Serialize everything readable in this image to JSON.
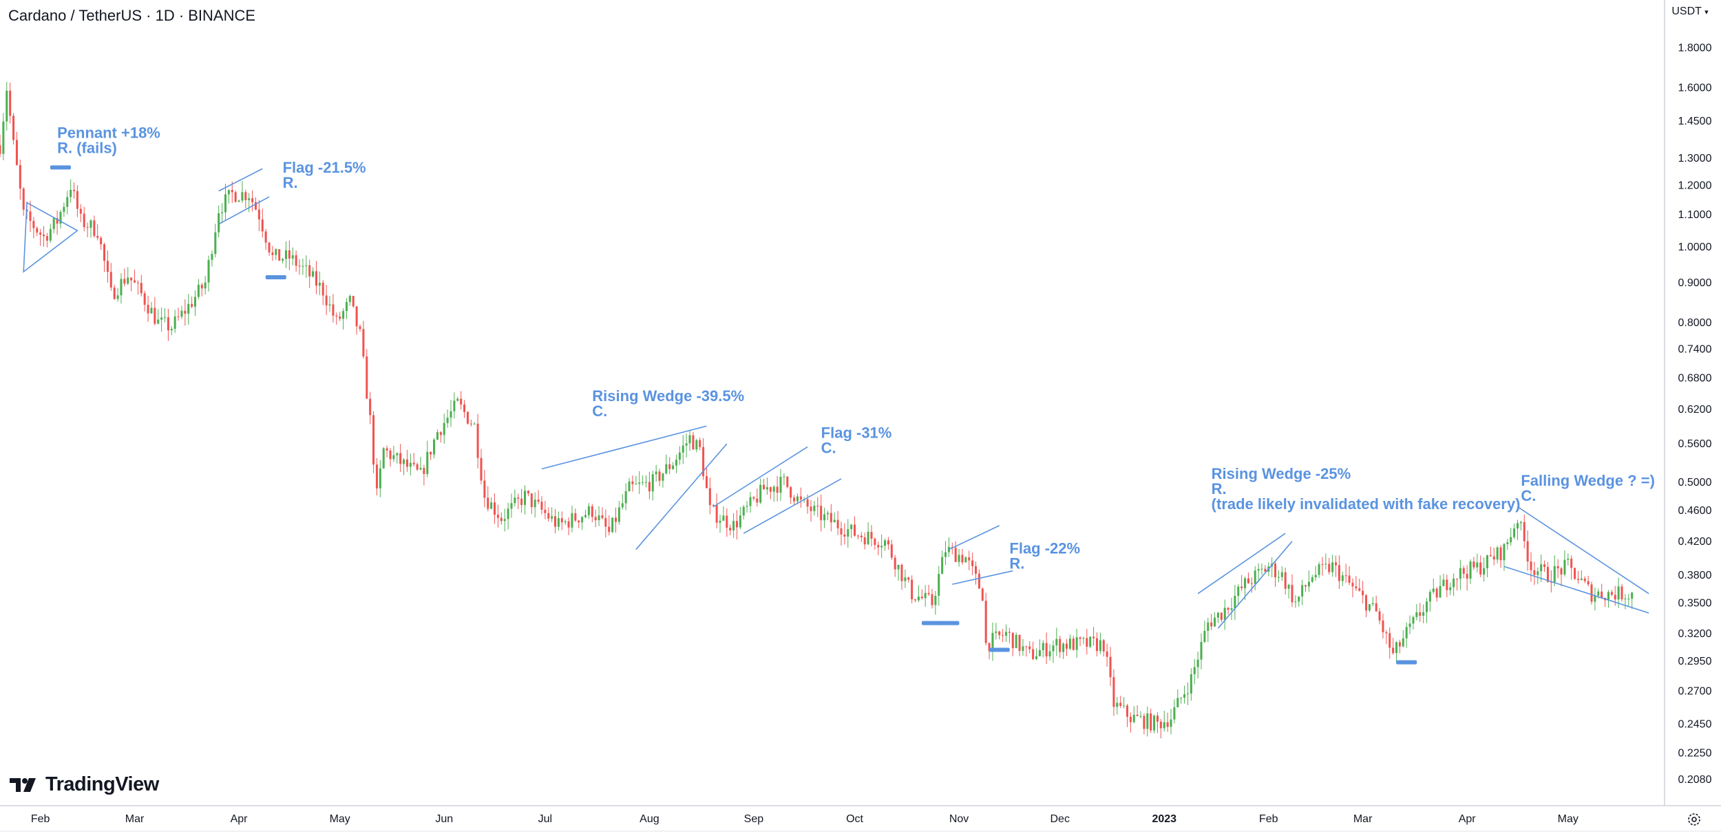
{
  "header": {
    "title": "Cardano / TetherUS · 1D · BINANCE",
    "currency": "USDT"
  },
  "branding": {
    "logo_text": "TradingView"
  },
  "colors": {
    "up": "#4caf50",
    "down": "#ef5350",
    "annotation": "#5a93e0",
    "axis_text": "#131722",
    "border": "#d1d4dc"
  },
  "icons": {
    "currency": "chevron-down-icon",
    "settings": "gear-icon",
    "logo": "tradingview-logo-icon"
  },
  "chart_data": {
    "type": "candlestick",
    "title": "Cardano / TetherUS · 1D · BINANCE",
    "y_scale": "log",
    "y_range": [
      0.195,
      1.95
    ],
    "y_ticks": [
      "1.8000",
      "1.6000",
      "1.4500",
      "1.3000",
      "1.2000",
      "1.1000",
      "1.0000",
      "0.9000",
      "0.8000",
      "0.7400",
      "0.6800",
      "0.6200",
      "0.5600",
      "0.5000",
      "0.4600",
      "0.4200",
      "0.3800",
      "0.3500",
      "0.3200",
      "0.2950",
      "0.2700",
      "0.2450",
      "0.2250",
      "0.2080"
    ],
    "x_range": [
      "2022-01-20",
      "2023-05-26"
    ],
    "x_ticks": [
      {
        "label": "Feb",
        "date": "2022-02-01",
        "bold": false
      },
      {
        "label": "Mar",
        "date": "2022-03-01",
        "bold": false
      },
      {
        "label": "Apr",
        "date": "2022-04-01",
        "bold": false
      },
      {
        "label": "May",
        "date": "2022-05-01",
        "bold": false
      },
      {
        "label": "Jun",
        "date": "2022-06-01",
        "bold": false
      },
      {
        "label": "Jul",
        "date": "2022-07-01",
        "bold": false
      },
      {
        "label": "Aug",
        "date": "2022-08-01",
        "bold": false
      },
      {
        "label": "Sep",
        "date": "2022-09-01",
        "bold": false
      },
      {
        "label": "Oct",
        "date": "2022-10-01",
        "bold": false
      },
      {
        "label": "Nov",
        "date": "2022-11-01",
        "bold": false
      },
      {
        "label": "Dec",
        "date": "2022-12-01",
        "bold": false
      },
      {
        "label": "2023",
        "date": "2023-01-01",
        "bold": true
      },
      {
        "label": "Feb",
        "date": "2023-02-01",
        "bold": false
      },
      {
        "label": "Mar",
        "date": "2023-03-01",
        "bold": false
      },
      {
        "label": "Apr",
        "date": "2023-04-01",
        "bold": false
      },
      {
        "label": "May",
        "date": "2023-05-01",
        "bold": false
      }
    ],
    "price_path": [
      [
        "2022-01-20",
        1.35
      ],
      [
        "2022-01-22",
        1.6
      ],
      [
        "2022-01-24",
        1.35
      ],
      [
        "2022-01-27",
        1.1
      ],
      [
        "2022-02-02",
        1.03
      ],
      [
        "2022-02-06",
        1.08
      ],
      [
        "2022-02-10",
        1.2
      ],
      [
        "2022-02-13",
        1.08
      ],
      [
        "2022-02-18",
        1.05
      ],
      [
        "2022-02-22",
        0.87
      ],
      [
        "2022-02-27",
        0.92
      ],
      [
        "2022-03-03",
        0.87
      ],
      [
        "2022-03-08",
        0.8
      ],
      [
        "2022-03-12",
        0.79
      ],
      [
        "2022-03-17",
        0.84
      ],
      [
        "2022-03-22",
        0.9
      ],
      [
        "2022-03-26",
        1.12
      ],
      [
        "2022-03-30",
        1.17
      ],
      [
        "2022-04-04",
        1.17
      ],
      [
        "2022-04-07",
        1.1
      ],
      [
        "2022-04-11",
        0.97
      ],
      [
        "2022-04-16",
        0.97
      ],
      [
        "2022-04-21",
        0.93
      ],
      [
        "2022-04-26",
        0.88
      ],
      [
        "2022-04-30",
        0.8
      ],
      [
        "2022-05-04",
        0.85
      ],
      [
        "2022-05-07",
        0.77
      ],
      [
        "2022-05-10",
        0.6
      ],
      [
        "2022-05-12",
        0.48
      ],
      [
        "2022-05-14",
        0.55
      ],
      [
        "2022-05-19",
        0.53
      ],
      [
        "2022-05-25",
        0.51
      ],
      [
        "2022-05-30",
        0.58
      ],
      [
        "2022-06-05",
        0.63
      ],
      [
        "2022-06-10",
        0.59
      ],
      [
        "2022-06-13",
        0.48
      ],
      [
        "2022-06-18",
        0.45
      ],
      [
        "2022-06-25",
        0.48
      ],
      [
        "2022-07-05",
        0.44
      ],
      [
        "2022-07-15",
        0.46
      ],
      [
        "2022-07-20",
        0.43
      ],
      [
        "2022-07-26",
        0.49
      ],
      [
        "2022-08-02",
        0.5
      ],
      [
        "2022-08-08",
        0.53
      ],
      [
        "2022-08-13",
        0.57
      ],
      [
        "2022-08-16",
        0.55
      ],
      [
        "2022-08-19",
        0.46
      ],
      [
        "2022-08-26",
        0.44
      ],
      [
        "2022-09-04",
        0.49
      ],
      [
        "2022-09-10",
        0.5
      ],
      [
        "2022-09-15",
        0.47
      ],
      [
        "2022-09-22",
        0.45
      ],
      [
        "2022-10-01",
        0.43
      ],
      [
        "2022-10-10",
        0.42
      ],
      [
        "2022-10-18",
        0.36
      ],
      [
        "2022-10-24",
        0.35
      ],
      [
        "2022-10-28",
        0.41
      ],
      [
        "2022-11-03",
        0.4
      ],
      [
        "2022-11-08",
        0.36
      ],
      [
        "2022-11-09",
        0.31
      ],
      [
        "2022-11-15",
        0.32
      ],
      [
        "2022-11-22",
        0.3
      ],
      [
        "2022-11-30",
        0.31
      ],
      [
        "2022-12-08",
        0.31
      ],
      [
        "2022-12-14",
        0.31
      ],
      [
        "2022-12-17",
        0.26
      ],
      [
        "2022-12-22",
        0.25
      ],
      [
        "2022-12-30",
        0.245
      ],
      [
        "2023-01-03",
        0.25
      ],
      [
        "2023-01-09",
        0.28
      ],
      [
        "2023-01-14",
        0.33
      ],
      [
        "2023-01-18",
        0.34
      ],
      [
        "2023-01-25",
        0.37
      ],
      [
        "2023-02-01",
        0.39
      ],
      [
        "2023-02-05",
        0.38
      ],
      [
        "2023-02-09",
        0.35
      ],
      [
        "2023-02-14",
        0.38
      ],
      [
        "2023-02-20",
        0.39
      ],
      [
        "2023-02-25",
        0.37
      ],
      [
        "2023-03-05",
        0.34
      ],
      [
        "2023-03-10",
        0.3
      ],
      [
        "2023-03-14",
        0.32
      ],
      [
        "2023-03-20",
        0.35
      ],
      [
        "2023-03-28",
        0.38
      ],
      [
        "2023-04-05",
        0.39
      ],
      [
        "2023-04-12",
        0.41
      ],
      [
        "2023-04-16",
        0.45
      ],
      [
        "2023-04-20",
        0.39
      ],
      [
        "2023-04-25",
        0.38
      ],
      [
        "2023-05-01",
        0.39
      ],
      [
        "2023-05-08",
        0.36
      ],
      [
        "2023-05-14",
        0.36
      ],
      [
        "2023-05-20",
        0.36
      ]
    ],
    "patterns": [
      {
        "id": "pennant",
        "shape": "triangle",
        "points": [
          [
            "2022-01-28",
            1.14
          ],
          [
            "2022-02-12",
            1.05
          ],
          [
            "2022-01-27",
            0.93
          ]
        ]
      },
      {
        "id": "flag-apr",
        "shape": "channel",
        "lines": [
          [
            [
              "2022-03-26",
              1.18
            ],
            [
              "2022-04-08",
              1.26
            ]
          ],
          [
            [
              "2022-03-26",
              1.07
            ],
            [
              "2022-04-10",
              1.16
            ]
          ]
        ]
      },
      {
        "id": "rising-wedge-aug",
        "shape": "wedge",
        "lines": [
          [
            [
              "2022-06-30",
              0.52
            ],
            [
              "2022-08-18",
              0.59
            ]
          ],
          [
            [
              "2022-07-28",
              0.41
            ],
            [
              "2022-08-24",
              0.56
            ]
          ]
        ]
      },
      {
        "id": "flag-sep",
        "shape": "channel",
        "lines": [
          [
            [
              "2022-08-20",
              0.465
            ],
            [
              "2022-09-17",
              0.555
            ]
          ],
          [
            [
              "2022-08-29",
              0.43
            ],
            [
              "2022-09-27",
              0.505
            ]
          ]
        ]
      },
      {
        "id": "flag-nov",
        "shape": "channel",
        "lines": [
          [
            [
              "2022-10-29",
              0.41
            ],
            [
              "2022-11-13",
              0.44
            ]
          ],
          [
            [
              "2022-10-30",
              0.37
            ],
            [
              "2022-11-17",
              0.385
            ]
          ]
        ]
      },
      {
        "id": "rising-wedge-jan",
        "shape": "wedge",
        "lines": [
          [
            [
              "2023-01-11",
              0.36
            ],
            [
              "2023-02-06",
              0.43
            ]
          ],
          [
            [
              "2023-01-17",
              0.325
            ],
            [
              "2023-02-08",
              0.42
            ]
          ]
        ]
      },
      {
        "id": "falling-wedge",
        "shape": "wedge",
        "lines": [
          [
            [
              "2023-04-16",
              0.465
            ],
            [
              "2023-05-25",
              0.36
            ]
          ],
          [
            [
              "2023-04-12",
              0.39
            ],
            [
              "2023-05-25",
              0.34
            ]
          ]
        ]
      }
    ],
    "markers": [
      {
        "date": "2022-02-07",
        "price": 1.265
      },
      {
        "date": "2022-04-12",
        "price": 0.915
      },
      {
        "date": "2022-10-24",
        "price": 0.33
      },
      {
        "date": "2022-10-29",
        "price": 0.33
      },
      {
        "date": "2022-11-13",
        "price": 0.305
      },
      {
        "date": "2023-03-14",
        "price": 0.294
      }
    ],
    "annotations": [
      {
        "lines": [
          "Pennant +18%",
          "R. (fails)"
        ],
        "date": "2022-02-06",
        "price": 1.38
      },
      {
        "lines": [
          "Flag -21.5%",
          "R."
        ],
        "date": "2022-04-14",
        "price": 1.245
      },
      {
        "lines": [
          "Rising Wedge -39.5%",
          "C."
        ],
        "date": "2022-07-15",
        "price": 0.635
      },
      {
        "lines": [
          "Flag -31%",
          "C."
        ],
        "date": "2022-09-21",
        "price": 0.57
      },
      {
        "lines": [
          "Flag -22%",
          "R."
        ],
        "date": "2022-11-16",
        "price": 0.405
      },
      {
        "lines": [
          "Rising Wedge -25%",
          "R.",
          "(trade likely invalidated with fake recovery)"
        ],
        "date": "2023-01-15",
        "price": 0.505
      },
      {
        "lines": [
          "Falling Wedge ? =)",
          "C."
        ],
        "date": "2023-04-17",
        "price": 0.495
      }
    ]
  }
}
